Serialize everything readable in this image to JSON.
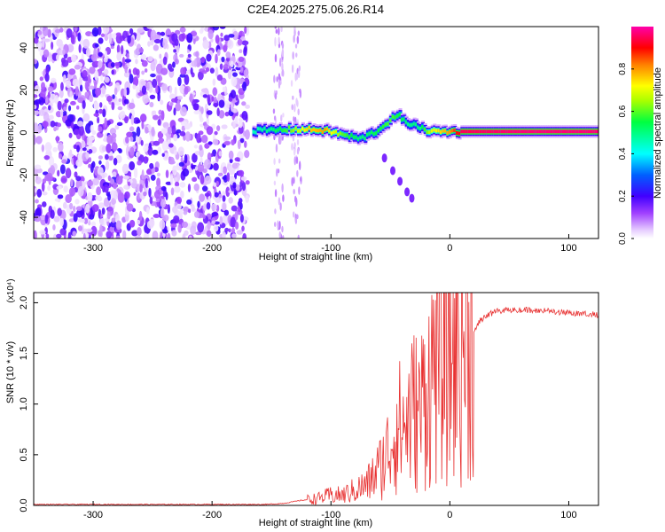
{
  "title": "C2E4.2025.275.06.26.R14",
  "colors": {
    "snr_line": "#e83232",
    "colormap": [
      "#ffffff",
      "#e6ccff",
      "#8800ff",
      "#0000ff",
      "#00ffff",
      "#00ff00",
      "#ffff00",
      "#ff8000",
      "#ff0000",
      "#ff00aa"
    ]
  },
  "chart_data": [
    {
      "type": "heatmap",
      "title": "C2E4.2025.275.06.26.R14",
      "xlabel": "Height of straight line (km)",
      "ylabel": "Frequency (Hz)",
      "xlim": [
        -350,
        125
      ],
      "ylim": [
        -50,
        50
      ],
      "xticks": [
        -300,
        -200,
        -100,
        0,
        100
      ],
      "yticks": [
        -40,
        -20,
        0,
        20,
        40
      ],
      "grid": false,
      "colorbar": {
        "label": "Normalized spectral amplitude",
        "range": [
          0,
          1
        ],
        "ticks": [
          "0.0",
          "0.2",
          "0.4",
          "0.6",
          "0.8"
        ]
      },
      "noise_region_x": [
        -350,
        -175
      ],
      "ridge": [
        {
          "x": -165,
          "y": 1.0,
          "amp": 0.45
        },
        {
          "x": -150,
          "y": 1.0,
          "amp": 0.5
        },
        {
          "x": -135,
          "y": 1.5,
          "amp": 0.6
        },
        {
          "x": -120,
          "y": 1.5,
          "amp": 0.75
        },
        {
          "x": -105,
          "y": 1.0,
          "amp": 0.8
        },
        {
          "x": -90,
          "y": -1.0,
          "amp": 0.6
        },
        {
          "x": -75,
          "y": -3.0,
          "amp": 0.5
        },
        {
          "x": -60,
          "y": 1.0,
          "amp": 0.55
        },
        {
          "x": -50,
          "y": 6.0,
          "amp": 0.6
        },
        {
          "x": -42,
          "y": 8.0,
          "amp": 0.55
        },
        {
          "x": -35,
          "y": 3.0,
          "amp": 0.5
        },
        {
          "x": -30,
          "y": 5.0,
          "amp": 0.5
        },
        {
          "x": -25,
          "y": 2.0,
          "amp": 0.5
        },
        {
          "x": -15,
          "y": 0.5,
          "amp": 0.7
        },
        {
          "x": 0,
          "y": 0.5,
          "amp": 0.8
        },
        {
          "x": 10,
          "y": 0.5,
          "amp": 0.95
        },
        {
          "x": 60,
          "y": 0.5,
          "amp": 0.97
        },
        {
          "x": 125,
          "y": 0.5,
          "amp": 0.97
        }
      ],
      "side_trace": [
        {
          "x": -55,
          "y": -12
        },
        {
          "x": -48,
          "y": -18
        },
        {
          "x": -42,
          "y": -23
        },
        {
          "x": -36,
          "y": -28
        },
        {
          "x": -32,
          "y": -31
        }
      ]
    },
    {
      "type": "line",
      "xlabel": "Height of straight line (km)",
      "ylabel": "SNR (10 * v/v)",
      "scale_label": "(x10⁴)",
      "xlim": [
        -350,
        125
      ],
      "ylim": [
        0,
        2.1
      ],
      "xticks": [
        -300,
        -200,
        -100,
        0,
        100
      ],
      "yticks": [
        "0.0",
        "0.5",
        "1.0",
        "1.5",
        "2.0"
      ],
      "grid": false,
      "series": [
        {
          "x": [
            -350,
            -300,
            -250,
            -200,
            -175,
            -155,
            -140,
            -125,
            -110,
            -100,
            -90,
            -80,
            -70,
            -60,
            -55,
            -50,
            -45,
            -40,
            -35,
            -30,
            -25,
            -20,
            -15,
            -12,
            -10,
            -8,
            -5,
            0,
            5,
            10,
            15,
            20,
            25,
            30,
            40,
            60,
            80,
            100,
            125
          ],
          "y": [
            0.01,
            0.01,
            0.01,
            0.01,
            0.01,
            0.01,
            0.02,
            0.05,
            0.07,
            0.1,
            0.1,
            0.15,
            0.2,
            0.35,
            0.45,
            0.6,
            0.8,
            0.75,
            0.85,
            0.95,
            0.9,
            1.2,
            1.25,
            1.6,
            1.3,
            1.45,
            1.55,
            1.4,
            1.6,
            1.65,
            1.7,
            1.75,
            1.85,
            1.9,
            1.95,
            1.96,
            1.95,
            1.93,
            1.91
          ]
        }
      ]
    }
  ]
}
